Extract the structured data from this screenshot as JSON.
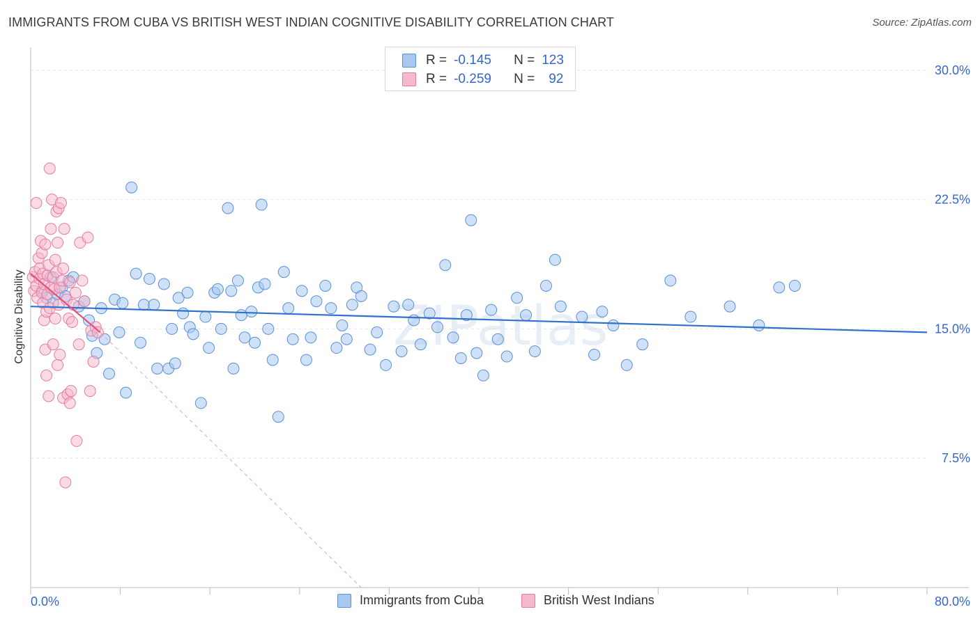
{
  "title": "IMMIGRANTS FROM CUBA VS BRITISH WEST INDIAN COGNITIVE DISABILITY CORRELATION CHART",
  "source": "Source: ZipAtlas.com",
  "watermark": "ZIPatlas",
  "legend": {
    "series1": {
      "r_label": "R =",
      "r_value": "-0.145",
      "n_label": "N =",
      "n_value": "123"
    },
    "series2": {
      "r_label": "R =",
      "r_value": "-0.259",
      "n_label": "N =",
      "n_value": "92"
    }
  },
  "bottom_legend": {
    "series1": "Immigrants from Cuba",
    "series2": "British West Indians"
  },
  "colors": {
    "blue_fill": "#a8c8f0",
    "blue_edge": "#5b8fd6",
    "blue_line": "#2f72cc",
    "pink_fill": "#f6b8cc",
    "pink_edge": "#e57ca0",
    "pink_line": "#e0527f",
    "tick_text": "#3366cc"
  },
  "chart_data": {
    "type": "scatter",
    "title": "IMMIGRANTS FROM CUBA VS BRITISH WEST INDIAN COGNITIVE DISABILITY CORRELATION CHART",
    "xlabel": "",
    "ylabel": "Cognitive Disability",
    "xlim": [
      0,
      80
    ],
    "ylim": [
      0,
      31
    ],
    "x_tick_labels": [
      "0.0%",
      "80.0%"
    ],
    "y_ticks": [
      7.5,
      15.0,
      22.5,
      30.0
    ],
    "y_tick_labels": [
      "7.5%",
      "15.0%",
      "22.5%",
      "30.0%"
    ],
    "grid": true,
    "legend_position": "top-center",
    "series": [
      {
        "name": "Immigrants from Cuba",
        "r": -0.145,
        "n": 123,
        "trend": {
          "x": [
            0,
            80
          ],
          "y": [
            16.3,
            14.8
          ]
        },
        "points": [
          [
            1.0,
            17.2
          ],
          [
            1.4,
            16.8
          ],
          [
            1.8,
            18.0
          ],
          [
            2.0,
            16.5
          ],
          [
            2.4,
            17.0
          ],
          [
            2.8,
            17.4
          ],
          [
            3.1,
            16.9
          ],
          [
            3.4,
            17.8
          ],
          [
            3.8,
            18.0
          ],
          [
            4.3,
            16.3
          ],
          [
            4.8,
            16.6
          ],
          [
            5.2,
            15.5
          ],
          [
            5.5,
            14.6
          ],
          [
            5.9,
            13.6
          ],
          [
            6.3,
            16.2
          ],
          [
            6.6,
            14.4
          ],
          [
            7.0,
            12.4
          ],
          [
            7.5,
            16.7
          ],
          [
            7.9,
            14.8
          ],
          [
            8.2,
            16.5
          ],
          [
            8.5,
            11.3
          ],
          [
            9.0,
            23.2
          ],
          [
            9.4,
            18.2
          ],
          [
            9.8,
            14.2
          ],
          [
            10.1,
            16.4
          ],
          [
            10.6,
            17.9
          ],
          [
            11.0,
            16.4
          ],
          [
            11.3,
            12.7
          ],
          [
            11.9,
            17.6
          ],
          [
            12.3,
            12.7
          ],
          [
            12.6,
            15.0
          ],
          [
            12.9,
            13.0
          ],
          [
            13.2,
            16.8
          ],
          [
            13.6,
            15.9
          ],
          [
            14.0,
            17.1
          ],
          [
            14.2,
            15.1
          ],
          [
            14.5,
            14.7
          ],
          [
            15.2,
            10.7
          ],
          [
            15.6,
            15.7
          ],
          [
            15.9,
            13.9
          ],
          [
            16.4,
            17.1
          ],
          [
            16.7,
            17.3
          ],
          [
            17.0,
            15.0
          ],
          [
            17.6,
            22.0
          ],
          [
            17.9,
            17.2
          ],
          [
            18.1,
            12.7
          ],
          [
            18.5,
            17.8
          ],
          [
            18.8,
            15.8
          ],
          [
            19.1,
            14.5
          ],
          [
            19.7,
            16.0
          ],
          [
            20.0,
            14.2
          ],
          [
            20.3,
            17.4
          ],
          [
            20.6,
            22.2
          ],
          [
            20.9,
            17.6
          ],
          [
            21.2,
            15.0
          ],
          [
            21.6,
            13.2
          ],
          [
            22.1,
            9.9
          ],
          [
            22.6,
            18.3
          ],
          [
            23.0,
            16.2
          ],
          [
            23.4,
            14.4
          ],
          [
            24.2,
            17.2
          ],
          [
            24.6,
            13.2
          ],
          [
            25.0,
            14.5
          ],
          [
            25.5,
            16.6
          ],
          [
            26.3,
            17.5
          ],
          [
            26.8,
            16.2
          ],
          [
            27.3,
            13.9
          ],
          [
            27.8,
            15.2
          ],
          [
            28.2,
            14.4
          ],
          [
            28.7,
            16.4
          ],
          [
            29.1,
            17.4
          ],
          [
            29.5,
            16.9
          ],
          [
            30.3,
            13.8
          ],
          [
            30.9,
            14.8
          ],
          [
            31.7,
            12.9
          ],
          [
            32.4,
            16.3
          ],
          [
            33.1,
            13.7
          ],
          [
            33.7,
            16.4
          ],
          [
            34.2,
            15.5
          ],
          [
            34.8,
            14.1
          ],
          [
            35.6,
            15.9
          ],
          [
            36.3,
            15.1
          ],
          [
            37.0,
            18.7
          ],
          [
            37.7,
            14.5
          ],
          [
            38.4,
            13.3
          ],
          [
            38.9,
            15.8
          ],
          [
            39.3,
            21.3
          ],
          [
            39.8,
            13.6
          ],
          [
            40.4,
            12.3
          ],
          [
            41.1,
            16.1
          ],
          [
            41.7,
            14.4
          ],
          [
            42.5,
            13.4
          ],
          [
            43.4,
            16.8
          ],
          [
            44.2,
            15.8
          ],
          [
            45.0,
            13.7
          ],
          [
            46.0,
            17.5
          ],
          [
            46.8,
            19.0
          ],
          [
            47.3,
            16.3
          ],
          [
            49.2,
            15.7
          ],
          [
            50.3,
            13.5
          ],
          [
            51.0,
            16.0
          ],
          [
            52.0,
            15.2
          ],
          [
            53.2,
            12.9
          ],
          [
            54.6,
            14.1
          ],
          [
            57.1,
            17.8
          ],
          [
            58.9,
            15.7
          ],
          [
            62.4,
            16.3
          ],
          [
            65.0,
            15.2
          ],
          [
            66.8,
            17.4
          ],
          [
            68.2,
            17.5
          ]
        ]
      },
      {
        "name": "British West Indians",
        "r": -0.259,
        "n": 92,
        "trend": {
          "x": [
            0,
            6.2
          ],
          "y": [
            18.2,
            14.8
          ]
        },
        "trend_extended": {
          "x": [
            6.2,
            29.5
          ],
          "y": [
            14.8,
            0
          ]
        },
        "points": [
          [
            0.2,
            18.0
          ],
          [
            0.3,
            17.2
          ],
          [
            0.4,
            18.3
          ],
          [
            0.5,
            22.3
          ],
          [
            0.5,
            17.5
          ],
          [
            0.6,
            16.8
          ],
          [
            0.7,
            19.1
          ],
          [
            0.8,
            17.9
          ],
          [
            0.8,
            18.5
          ],
          [
            0.9,
            20.1
          ],
          [
            1.0,
            17.1
          ],
          [
            1.0,
            19.4
          ],
          [
            1.1,
            16.5
          ],
          [
            1.1,
            18.2
          ],
          [
            1.2,
            15.5
          ],
          [
            1.2,
            17.6
          ],
          [
            1.3,
            13.8
          ],
          [
            1.3,
            19.9
          ],
          [
            1.4,
            16.0
          ],
          [
            1.4,
            12.3
          ],
          [
            1.5,
            18.1
          ],
          [
            1.5,
            17.0
          ],
          [
            1.6,
            11.1
          ],
          [
            1.6,
            18.7
          ],
          [
            1.7,
            24.3
          ],
          [
            1.7,
            16.2
          ],
          [
            1.8,
            20.8
          ],
          [
            1.8,
            17.4
          ],
          [
            1.9,
            22.5
          ],
          [
            2.0,
            18.0
          ],
          [
            2.0,
            14.1
          ],
          [
            2.1,
            17.3
          ],
          [
            2.2,
            19.0
          ],
          [
            2.2,
            15.6
          ],
          [
            2.3,
            21.8
          ],
          [
            2.3,
            18.3
          ],
          [
            2.4,
            12.9
          ],
          [
            2.4,
            20.0
          ],
          [
            2.5,
            22.0
          ],
          [
            2.5,
            16.4
          ],
          [
            2.6,
            13.5
          ],
          [
            2.6,
            17.4
          ],
          [
            2.7,
            22.3
          ],
          [
            2.8,
            17.8
          ],
          [
            2.9,
            11.0
          ],
          [
            2.9,
            18.5
          ],
          [
            3.0,
            20.8
          ],
          [
            3.1,
            6.1
          ],
          [
            3.2,
            16.7
          ],
          [
            3.3,
            11.2
          ],
          [
            3.4,
            15.6
          ],
          [
            3.5,
            10.7
          ],
          [
            3.5,
            17.7
          ],
          [
            3.6,
            11.4
          ],
          [
            3.7,
            15.4
          ],
          [
            3.8,
            16.4
          ],
          [
            4.0,
            17.1
          ],
          [
            4.1,
            8.5
          ],
          [
            4.3,
            14.1
          ],
          [
            4.4,
            20.0
          ],
          [
            4.6,
            17.8
          ],
          [
            4.8,
            16.6
          ],
          [
            5.1,
            20.3
          ],
          [
            5.3,
            11.4
          ],
          [
            5.4,
            14.9
          ],
          [
            5.6,
            13.1
          ],
          [
            5.8,
            15.1
          ],
          [
            6.0,
            14.8
          ]
        ]
      }
    ]
  }
}
